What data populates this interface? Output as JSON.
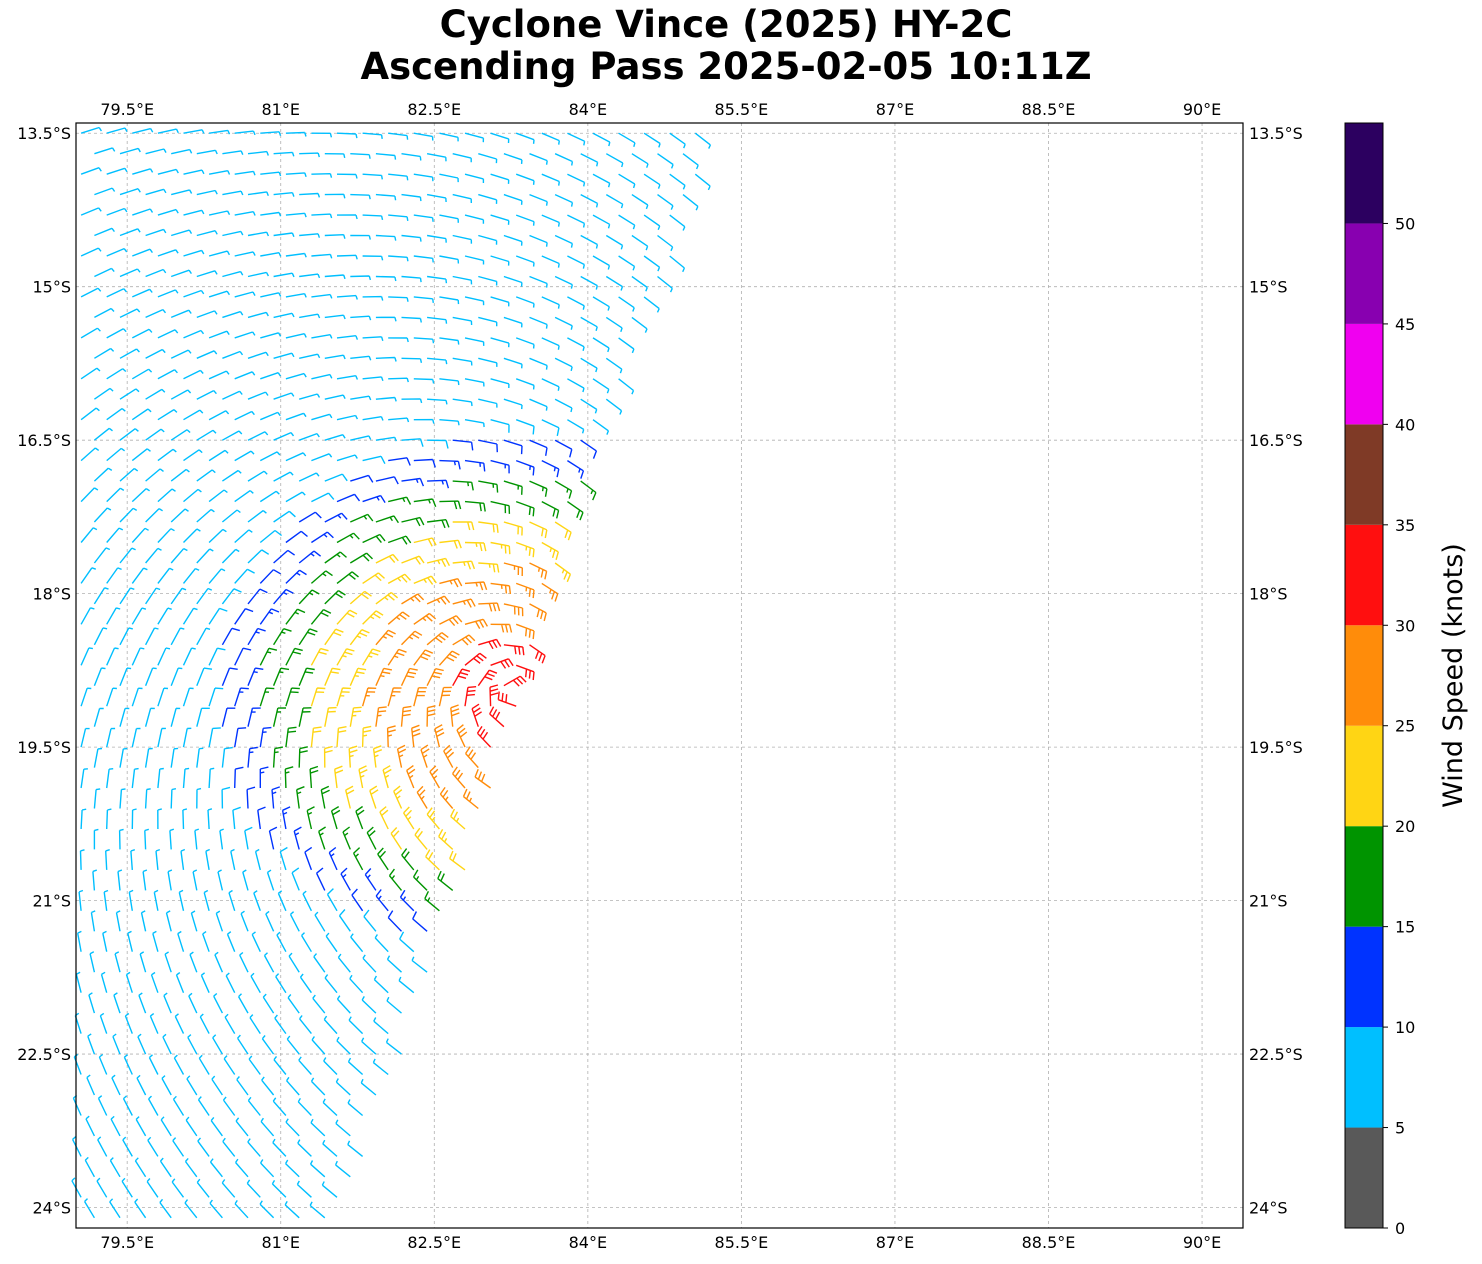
{
  "title": {
    "line1": "Cyclone Vince (2025) HY-2C",
    "line2": "Ascending Pass 2025-02-05 10:11Z"
  },
  "chart_data": {
    "type": "wind-barb",
    "title": "Cyclone Vince (2025) HY-2C Ascending Pass 2025-02-05 10:11Z",
    "xlim": [
      79.0,
      90.4
    ],
    "ylim": [
      -24.2,
      -13.4
    ],
    "x_ticks": [
      79.5,
      81,
      82.5,
      84,
      85.5,
      87,
      88.5,
      90
    ],
    "x_tick_labels": [
      "79.5°E",
      "81°E",
      "82.5°E",
      "84°E",
      "85.5°E",
      "87°E",
      "88.5°E",
      "90°E"
    ],
    "y_ticks": [
      -13.5,
      -15,
      -16.5,
      -18,
      -19.5,
      -21,
      -22.5,
      -24
    ],
    "y_tick_labels": [
      "13.5°S",
      "15°S",
      "16.5°S",
      "18°S",
      "19.5°S",
      "21°S",
      "22.5°S",
      "24°S"
    ],
    "grid": true,
    "colorbar": {
      "label": "Wind Speed (knots)",
      "bounds": [
        0,
        5,
        10,
        15,
        20,
        25,
        30,
        35,
        40,
        45,
        50,
        55
      ],
      "tick_values": [
        0,
        5,
        10,
        15,
        20,
        25,
        30,
        35,
        40,
        45,
        50
      ],
      "colors": [
        "#595959",
        "#00bfff",
        "#0033ff",
        "#009400",
        "#ffd514",
        "#ff8c0a",
        "#ff0f0f",
        "#7f3a26",
        "#f000f0",
        "#8800b0",
        "#2c0060"
      ]
    },
    "swath": {
      "east_edge": [
        [
          -13.5,
          85.2
        ],
        [
          -15.0,
          84.7
        ],
        [
          -16.5,
          84.1
        ],
        [
          -18.0,
          83.6
        ],
        [
          -19.5,
          83.2
        ],
        [
          -21.0,
          82.7
        ],
        [
          -22.5,
          82.2
        ],
        [
          -24.2,
          81.6
        ]
      ],
      "center_lat": -19.0,
      "center_lon": 83.3,
      "max_speed_knots": 32
    }
  }
}
